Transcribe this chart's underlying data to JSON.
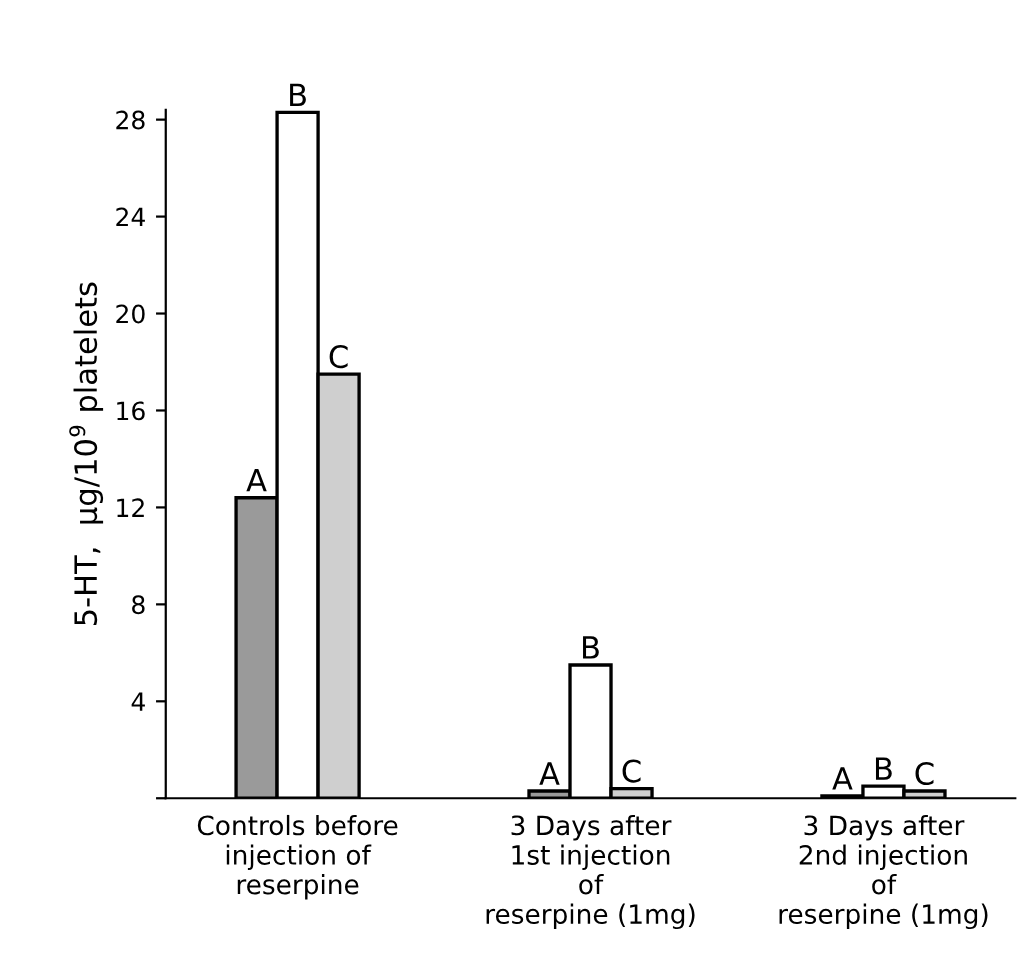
{
  "chart_data": {
    "type": "bar",
    "ylabel": "5-HT,  μg/10$^{9}$ platelets",
    "categories": [
      "Controls before\ninjection of\nreserpine",
      "3 Days after\n1st injection\nof\nreserpine (1mg)",
      "3 Days after\n2nd injection\nof\nreserpine (1mg)"
    ],
    "series": [
      {
        "name": "A",
        "color": "#9a9a9a",
        "values": [
          12.4,
          0.3,
          0.1
        ]
      },
      {
        "name": "B",
        "color": "#ffffff",
        "values": [
          28.3,
          5.5,
          0.5
        ]
      },
      {
        "name": "C",
        "color": "#cfcfcf",
        "values": [
          17.5,
          0.4,
          0.3
        ]
      }
    ],
    "ylim": [
      0,
      28.4
    ],
    "yticks": [
      {
        "value": 0,
        "label": null
      },
      4,
      8,
      12,
      16,
      20,
      24,
      28
    ],
    "grid": false,
    "legend": false
  }
}
